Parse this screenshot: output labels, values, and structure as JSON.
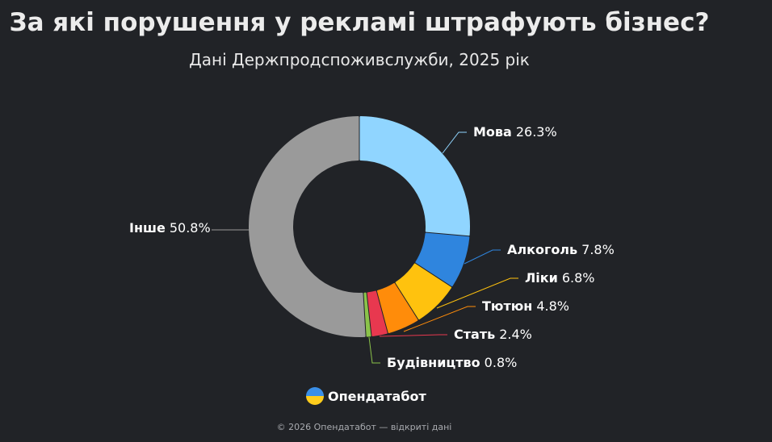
{
  "title": "За які порушення у рекламі штрафують бізнес?",
  "subtitle": "Дані Держпродспоживслужби, 2025 рік",
  "chart_data": {
    "type": "pie",
    "title": "За які порушення у рекламі штрафують бізнес?",
    "subtitle": "Дані Держпродспоживслужби, 2025 рік",
    "unit": "%",
    "slices": [
      {
        "name": "Мова",
        "value": 26.3,
        "value_label": "26.3%",
        "color": "#90d5ff"
      },
      {
        "name": "Алкоголь",
        "value": 7.8,
        "value_label": "7.8%",
        "color": "#2f85de"
      },
      {
        "name": "Ліки",
        "value": 6.8,
        "value_label": "6.8%",
        "color": "#ffc20e"
      },
      {
        "name": "Тютюн",
        "value": 4.8,
        "value_label": "4.8%",
        "color": "#ff8c0a"
      },
      {
        "name": "Стать",
        "value": 2.4,
        "value_label": "2.4%",
        "color": "#e8384f"
      },
      {
        "name": "Будівництво",
        "value": 0.8,
        "value_label": "0.8%",
        "color": "#8bc34a"
      },
      {
        "name": "Інше",
        "value": 50.8,
        "value_label": "50.8%",
        "color": "#9a9a9a"
      }
    ]
  },
  "brand": {
    "name": "Опендатабот",
    "icon": "opendatabot-logo-icon"
  },
  "footer": "© 2026 Опендатабот — відкриті дані"
}
